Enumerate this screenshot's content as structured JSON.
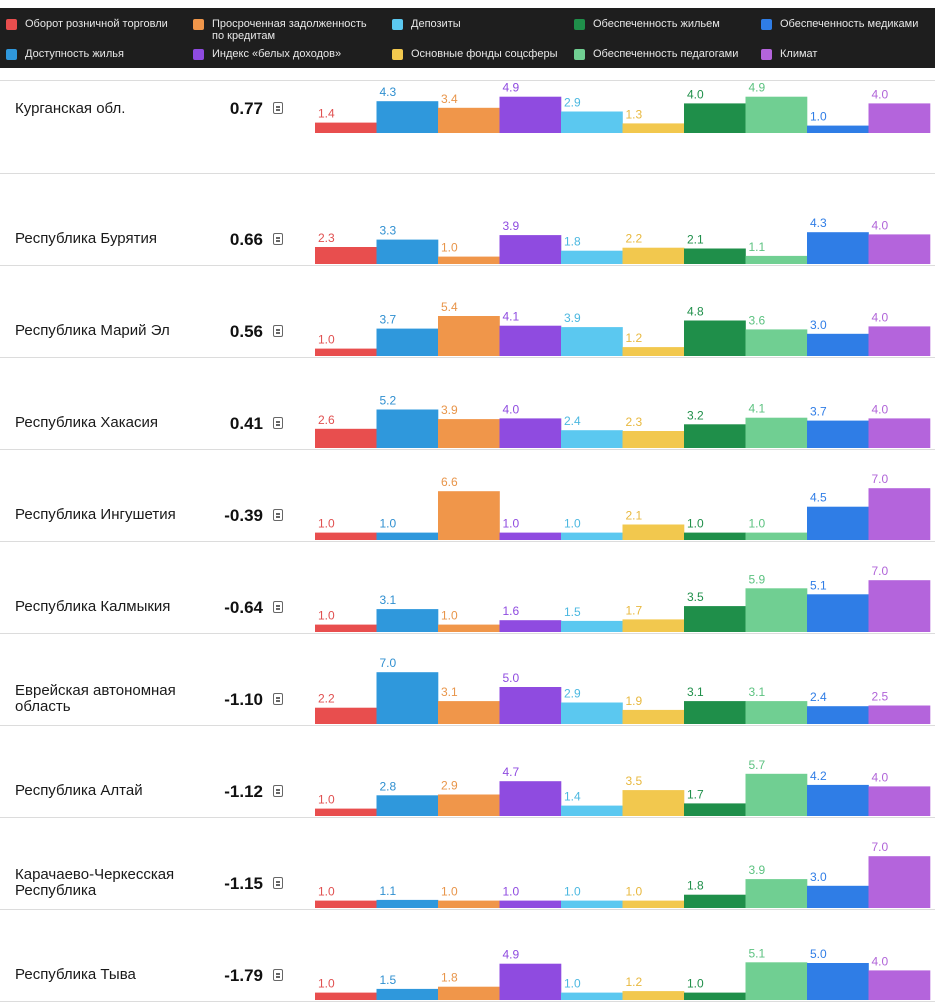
{
  "legend": [
    {
      "label": "Оборот розничной торговли",
      "color": "#e84e4e"
    },
    {
      "label": "Просроченная задолженность\nпо кредитам",
      "color": "#f0964a"
    },
    {
      "label": "Депозиты",
      "color": "#5bc8f0"
    },
    {
      "label": "Обеспеченность жильем",
      "color": "#1f8f4a"
    },
    {
      "label": "Обеспеченность медиками",
      "color": "#2f7de6"
    },
    {
      "label": "Доступность жилья",
      "color": "#2f98dc"
    },
    {
      "label": "Индекс «белых доходов»",
      "color": "#8f4be0"
    },
    {
      "label": "Основные фонды соцсферы",
      "color": "#f2c84e"
    },
    {
      "label": "Обеспеченность педагогами",
      "color": "#70cf92"
    },
    {
      "label": "Климат",
      "color": "#b464dc"
    }
  ],
  "chart_data": {
    "type": "bar",
    "categories": [
      "Оборот розничной торговли",
      "Доступность жилья",
      "Просроченная задолженность по кредитам",
      "Индекс «белых доходов»",
      "Депозиты",
      "Основные фонды соцсферы",
      "Обеспеченность жильем",
      "Обеспеченность педагогами",
      "Обеспеченность медиками",
      "Климат"
    ],
    "colors": [
      "#e84e4e",
      "#2f98dc",
      "#f0964a",
      "#8f4be0",
      "#5bc8f0",
      "#f2c84e",
      "#1f8f4a",
      "#70cf92",
      "#2f7de6",
      "#b464dc"
    ],
    "label_colors": [
      "#e05050",
      "#2f8fd0",
      "#e8954a",
      "#8f4be0",
      "#4cb8e0",
      "#e8b83e",
      "#1f8f4a",
      "#5cc280",
      "#2f7de6",
      "#b064d8"
    ],
    "ylim": [
      0,
      7
    ],
    "series": [
      {
        "name": "Курганская обл.",
        "values": [
          1.4,
          4.3,
          3.4,
          4.9,
          2.9,
          1.3,
          4.0,
          4.9,
          1.0,
          4.0
        ]
      },
      {
        "name": "Республика Бурятия",
        "values": [
          2.3,
          3.3,
          1.0,
          3.9,
          1.8,
          2.2,
          2.1,
          1.1,
          4.3,
          4.0
        ]
      },
      {
        "name": "Республика Марий Эл",
        "values": [
          1.0,
          3.7,
          5.4,
          4.1,
          3.9,
          1.2,
          4.8,
          3.6,
          3.0,
          4.0
        ]
      },
      {
        "name": "Республика Хакасия",
        "values": [
          2.6,
          5.2,
          3.9,
          4.0,
          2.4,
          2.3,
          3.2,
          4.1,
          3.7,
          4.0
        ]
      },
      {
        "name": "Республика Ингушетия",
        "values": [
          1.0,
          1.0,
          6.6,
          1.0,
          1.0,
          2.1,
          1.0,
          1.0,
          4.5,
          7.0
        ]
      },
      {
        "name": "Республика Калмыкия",
        "values": [
          1.0,
          3.1,
          1.0,
          1.6,
          1.5,
          1.7,
          3.5,
          5.9,
          5.1,
          7.0
        ]
      },
      {
        "name": "Еврейская автономная область",
        "values": [
          2.2,
          7.0,
          3.1,
          5.0,
          2.9,
          1.9,
          3.1,
          3.1,
          2.4,
          2.5
        ]
      },
      {
        "name": "Республика Алтай",
        "values": [
          1.0,
          2.8,
          2.9,
          4.7,
          1.4,
          3.5,
          1.7,
          5.7,
          4.2,
          4.0
        ]
      },
      {
        "name": "Карачаево-Черкесская Республика",
        "values": [
          1.0,
          1.1,
          1.0,
          1.0,
          1.0,
          1.0,
          1.8,
          3.9,
          3.0,
          7.0
        ]
      },
      {
        "name": "Республика Тыва",
        "values": [
          1.0,
          1.5,
          1.8,
          4.9,
          1.0,
          1.2,
          1.0,
          5.1,
          5.0,
          4.0
        ]
      }
    ]
  },
  "regions": [
    {
      "name": "Курганская обл.",
      "score": "0.77"
    },
    {
      "name": "Республика Бурятия",
      "score": "0.66"
    },
    {
      "name": "Республика Марий Эл",
      "score": "0.56"
    },
    {
      "name": "Республика Хакасия",
      "score": "0.41"
    },
    {
      "name": "Республика Ингушетия",
      "score": "-0.39"
    },
    {
      "name": "Республика Калмыкия",
      "score": "-0.64"
    },
    {
      "name": "Еврейская автономная область",
      "score": "-1.10"
    },
    {
      "name": "Республика Алтай",
      "score": "-1.12"
    },
    {
      "name": "Карачаево-Черкесская Республика",
      "score": "-1.15"
    },
    {
      "name": "Республика Тыва",
      "score": "-1.79"
    }
  ]
}
